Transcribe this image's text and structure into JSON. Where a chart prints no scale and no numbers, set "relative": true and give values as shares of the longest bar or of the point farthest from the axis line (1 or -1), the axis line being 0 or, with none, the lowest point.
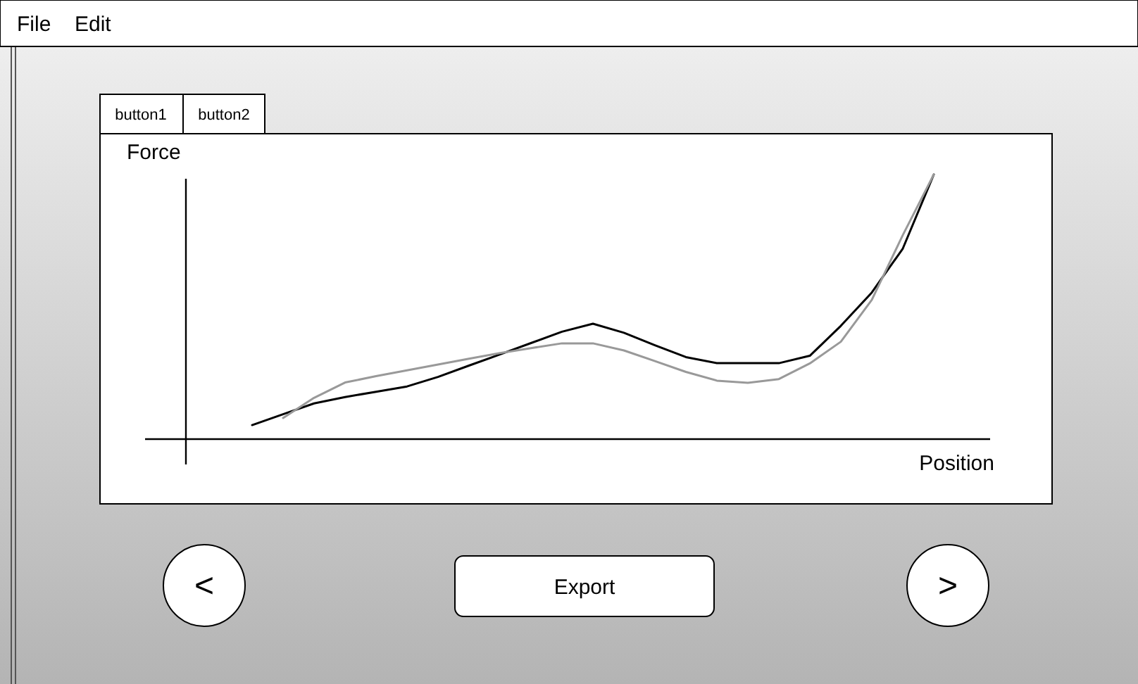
{
  "chart_data": {
    "type": "line",
    "xlabel": "Position",
    "ylabel": "Force",
    "relative": true,
    "line_style": "solid",
    "categories": [
      null,
      null,
      null,
      null,
      null,
      null,
      null,
      null,
      null,
      null,
      null,
      null,
      null,
      null,
      null,
      null,
      null,
      null,
      null,
      null,
      null,
      null,
      null
    ],
    "series": [
      {
        "color": "#000000",
        "values": [
          0.053,
          0.094,
          0.135,
          0.159,
          0.179,
          0.199,
          0.235,
          0.278,
          0.32,
          0.363,
          0.406,
          0.436,
          0.402,
          0.355,
          0.31,
          0.287,
          0.287,
          0.287,
          0.315,
          0.428,
          0.554,
          0.72,
          1.0
        ]
      },
      {
        "color": "#999999",
        "values": [
          null,
          0.08,
          0.156,
          0.214,
          0.238,
          0.26,
          0.282,
          0.304,
          0.325,
          0.344,
          0.362,
          0.362,
          0.335,
          0.295,
          0.254,
          0.221,
          0.213,
          0.227,
          0.286,
          0.368,
          0.526,
          0.771,
          1.0
        ]
      }
    ],
    "annotations": [
      "File",
      "Edit",
      "button1",
      "button2",
      "<",
      "Export",
      ">"
    ]
  }
}
